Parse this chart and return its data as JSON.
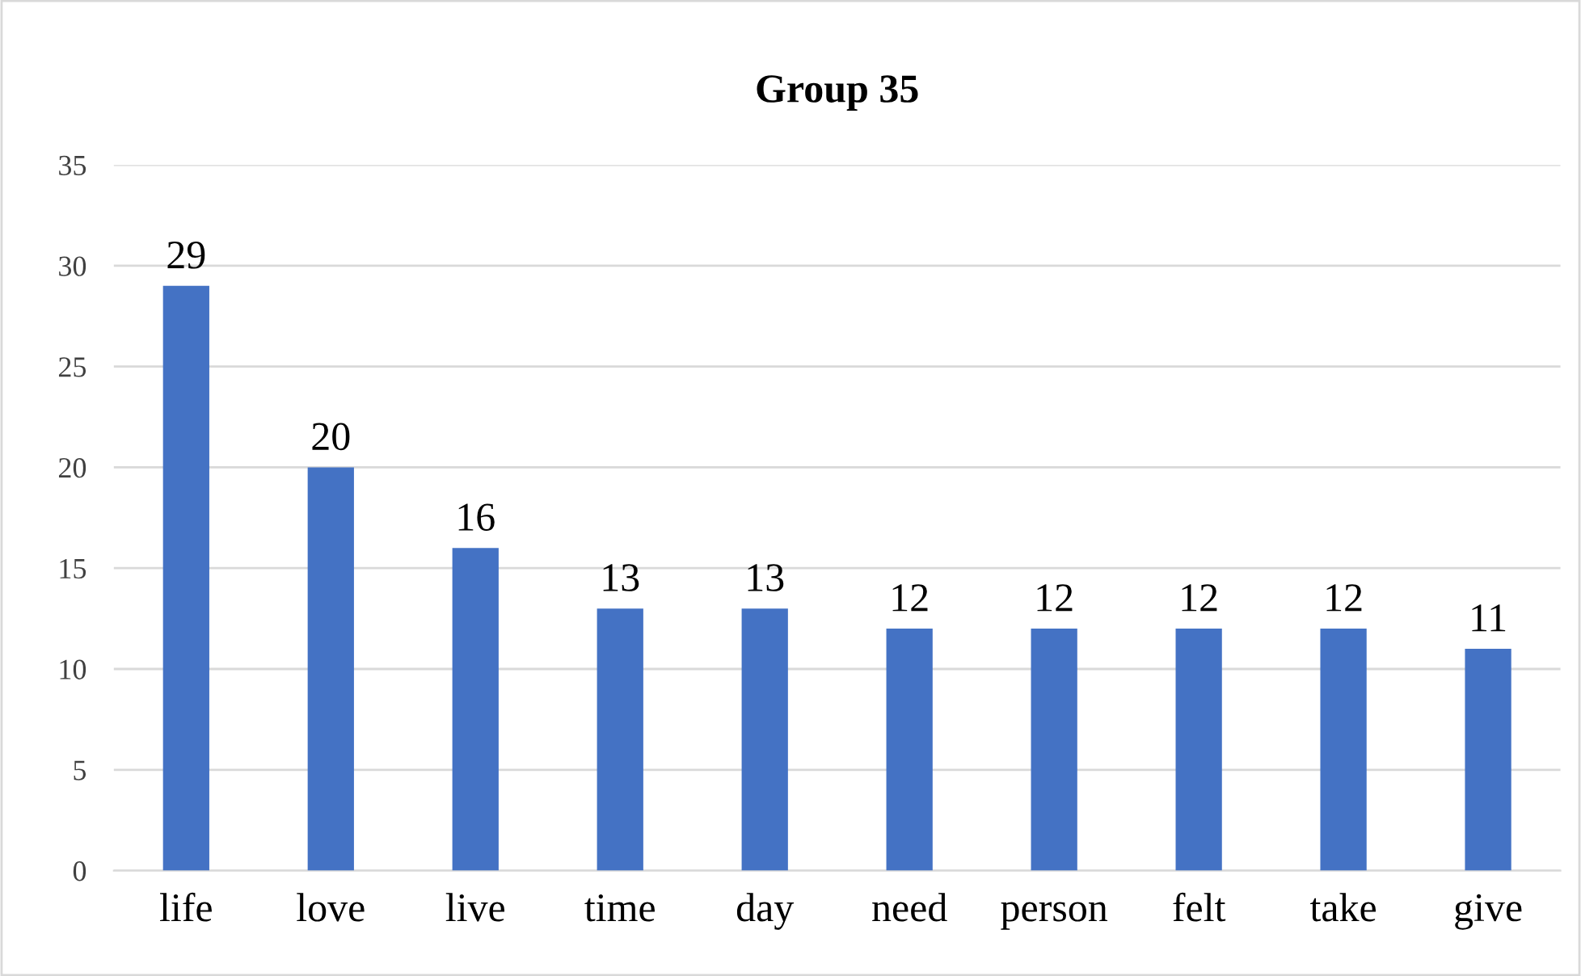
{
  "chart_data": {
    "type": "bar",
    "title": "Group 35",
    "categories": [
      "life",
      "love",
      "live",
      "time",
      "day",
      "need",
      "person",
      "felt",
      "take",
      "give"
    ],
    "values": [
      29,
      20,
      16,
      13,
      13,
      12,
      12,
      12,
      12,
      11
    ],
    "color": "#4472c4",
    "ylim": [
      0,
      35
    ],
    "yticks": [
      0,
      5,
      10,
      15,
      20,
      25,
      30,
      35
    ],
    "grid": "y",
    "data_labels": true
  }
}
